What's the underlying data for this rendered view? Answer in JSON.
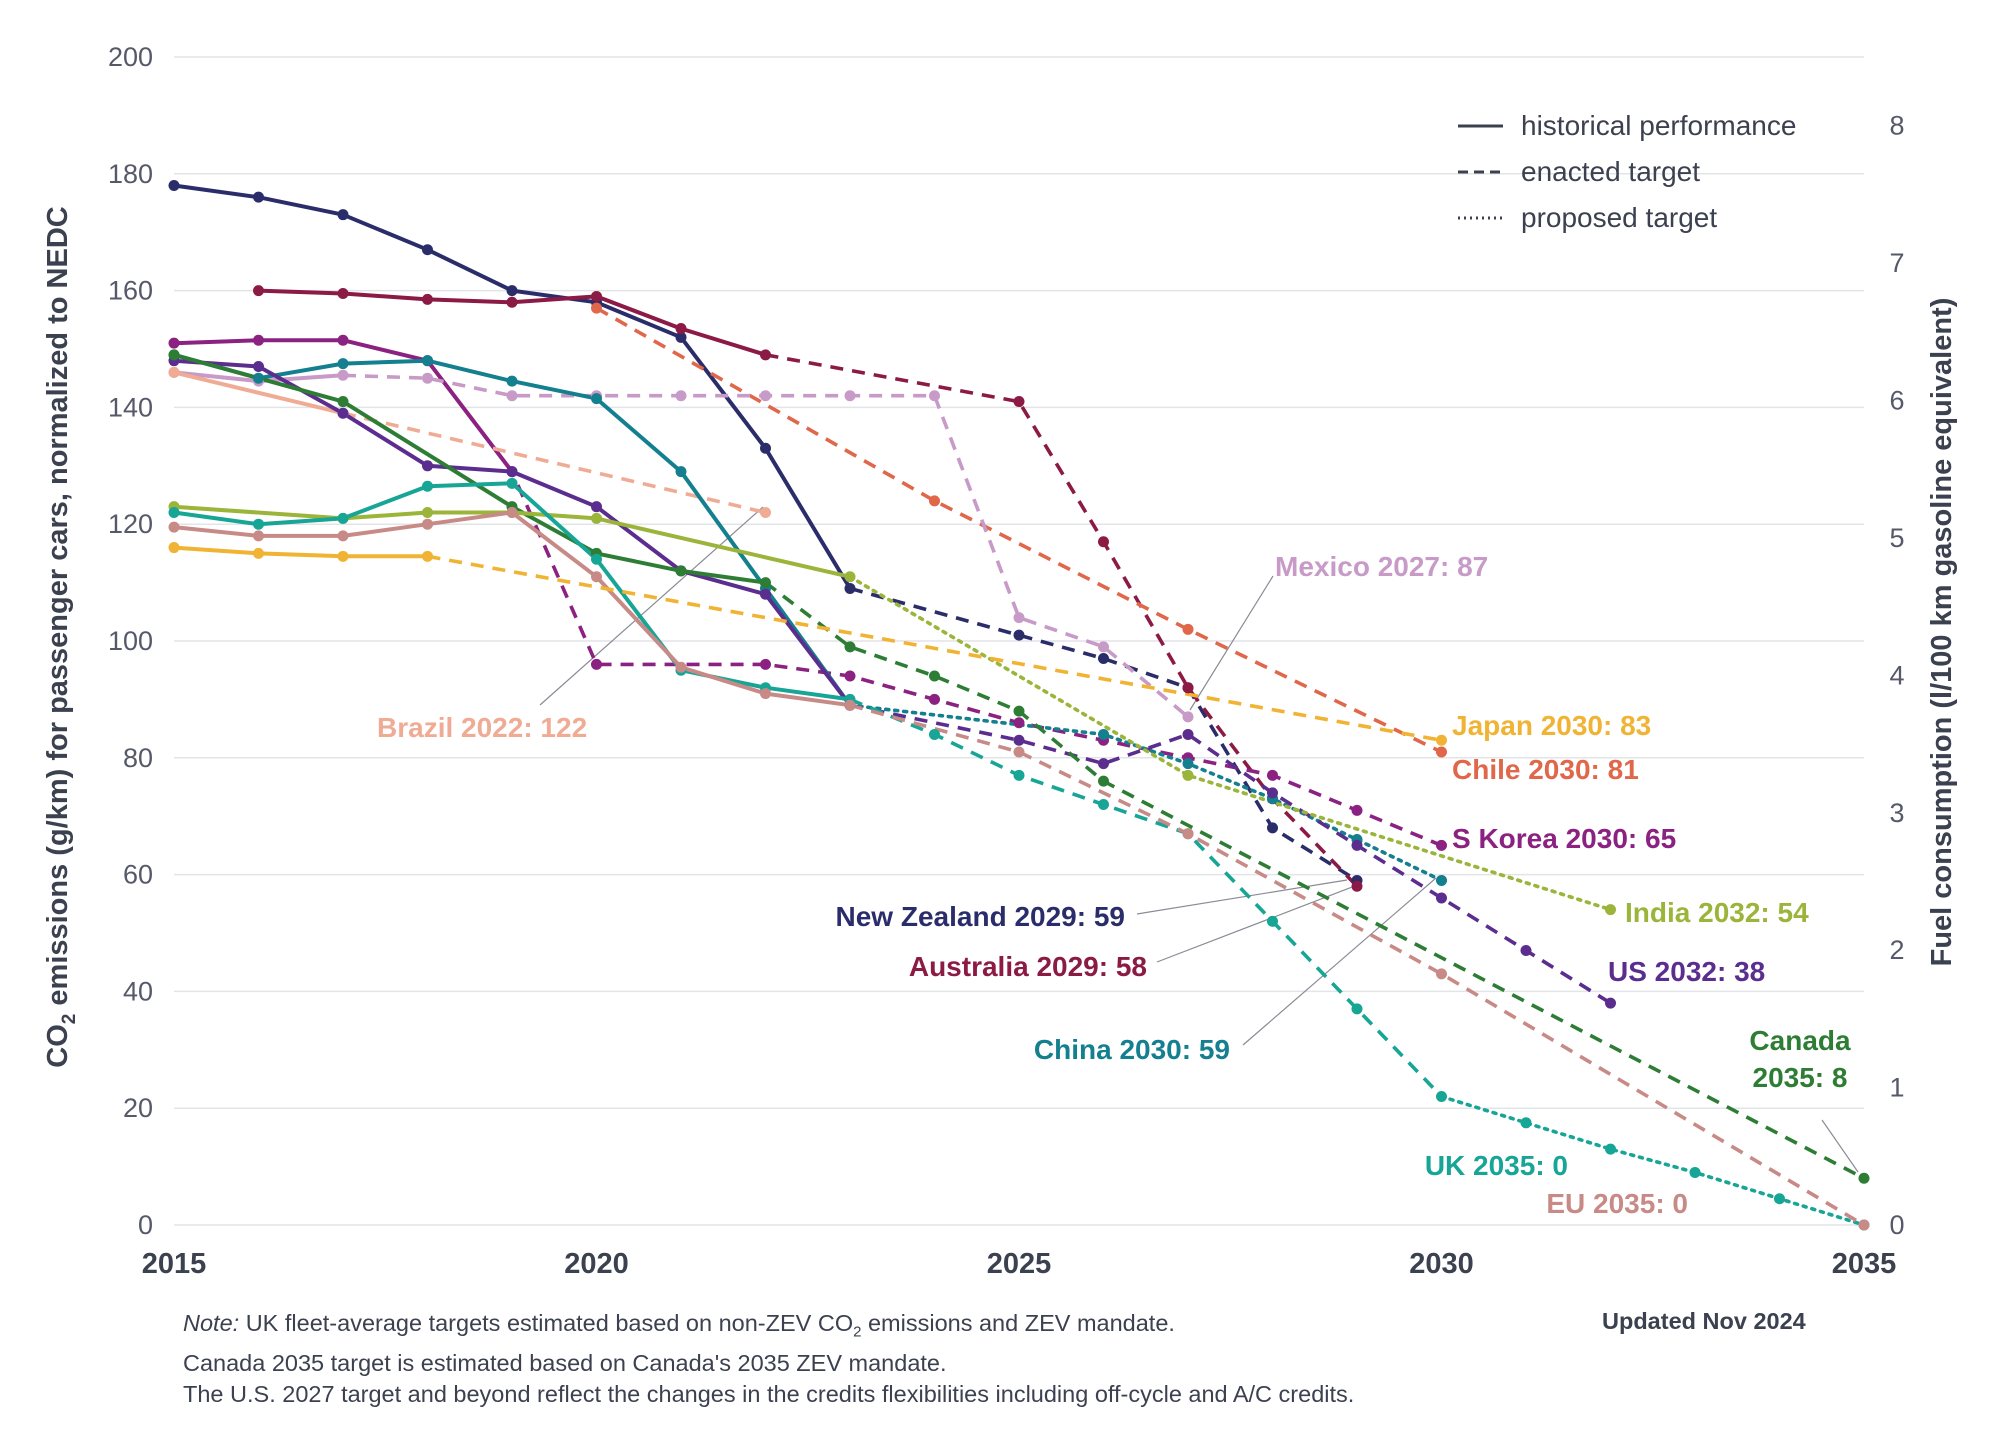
{
  "chart_data": {
    "type": "line",
    "y_axis_label_prefix": "CO",
    "y_axis_label_sub": "2",
    "y_axis_label_rest": " emissions (g/km) for passenger cars, normalized to NEDC",
    "y2_axis_label": "Fuel consumption (l/100 km gasoline equivalent)",
    "xlim": [
      2015,
      2035
    ],
    "ylim": [
      0,
      200
    ],
    "y2lim": [
      0,
      8.5
    ],
    "x_ticks": [
      "2015",
      "2020",
      "2025",
      "2030",
      "2035"
    ],
    "y_ticks": [
      "0",
      "20",
      "40",
      "60",
      "80",
      "100",
      "120",
      "140",
      "160",
      "180",
      "200"
    ],
    "y2_ticks": [
      "0",
      "1",
      "2",
      "3",
      "4",
      "5",
      "6",
      "7",
      "8"
    ],
    "legend": [
      {
        "label": "historical performance",
        "style": "solid"
      },
      {
        "label": "enacted target",
        "style": "dashed"
      },
      {
        "label": "proposed target",
        "style": "dotted"
      }
    ],
    "series": [
      {
        "name": "New Zealand",
        "color": "#2b2d6b",
        "historical": [
          [
            2015,
            178
          ],
          [
            2016,
            176
          ],
          [
            2017,
            173
          ],
          [
            2018,
            167
          ],
          [
            2019,
            160
          ],
          [
            2020,
            158
          ],
          [
            2021,
            152
          ],
          [
            2022,
            133
          ],
          [
            2023,
            109
          ]
        ],
        "enacted": [
          [
            2023,
            109
          ],
          [
            2025,
            101
          ],
          [
            2026,
            97
          ],
          [
            2027,
            92
          ],
          [
            2028,
            68
          ],
          [
            2029,
            59
          ]
        ]
      },
      {
        "name": "Australia",
        "color": "#8b1a45",
        "historical": [
          [
            2016,
            160
          ],
          [
            2017,
            159.5
          ],
          [
            2018,
            158.5
          ],
          [
            2019,
            158
          ],
          [
            2020,
            159
          ],
          [
            2021,
            153.5
          ],
          [
            2022,
            149
          ]
        ],
        "enacted": [
          [
            2022,
            149
          ],
          [
            2025,
            141
          ],
          [
            2026,
            117
          ],
          [
            2027,
            92
          ],
          [
            2028,
            73
          ],
          [
            2029,
            58
          ]
        ]
      },
      {
        "name": "Chile",
        "color": "#e0674a",
        "enacted": [
          [
            2020,
            157
          ],
          [
            2024,
            124
          ],
          [
            2027,
            102
          ],
          [
            2030,
            81
          ]
        ]
      },
      {
        "name": "S Korea",
        "color": "#8b2181",
        "historical": [
          [
            2015,
            151
          ],
          [
            2016,
            151.5
          ],
          [
            2017,
            151.5
          ],
          [
            2018,
            148
          ],
          [
            2019,
            129
          ]
        ],
        "enacted": [
          [
            2018,
            148
          ],
          [
            2019,
            129
          ],
          [
            2020,
            96
          ],
          [
            2022,
            96
          ],
          [
            2023,
            94
          ],
          [
            2024,
            90
          ],
          [
            2025,
            86
          ],
          [
            2026,
            83
          ],
          [
            2027,
            80
          ],
          [
            2028,
            77
          ],
          [
            2029,
            71
          ],
          [
            2030,
            65
          ]
        ]
      },
      {
        "name": "Mexico",
        "color": "#c79ac7",
        "historical": [
          [
            2015,
            146
          ],
          [
            2016,
            144.5
          ],
          [
            2017,
            145.5
          ]
        ],
        "enacted": [
          [
            2017,
            145.5
          ],
          [
            2018,
            145
          ],
          [
            2019,
            142
          ],
          [
            2020,
            142
          ],
          [
            2021,
            142
          ],
          [
            2022,
            142
          ],
          [
            2023,
            142
          ],
          [
            2024,
            142
          ],
          [
            2025,
            104
          ],
          [
            2026,
            99
          ],
          [
            2027,
            87
          ]
        ]
      },
      {
        "name": "Brazil",
        "color": "#f0ab95",
        "historical": [
          [
            2015,
            146
          ],
          [
            2017,
            139
          ]
        ],
        "enacted": [
          [
            2017,
            139
          ],
          [
            2022,
            122
          ]
        ]
      },
      {
        "name": "China",
        "color": "#137f8f",
        "historical": [
          [
            2015,
            149
          ],
          [
            2016,
            145
          ],
          [
            2017,
            147.5
          ],
          [
            2018,
            148
          ],
          [
            2019,
            144.5
          ],
          [
            2020,
            141.5
          ],
          [
            2021,
            129
          ],
          [
            2022,
            109
          ],
          [
            2023,
            89
          ]
        ],
        "proposed": [
          [
            2023,
            89
          ],
          [
            2026,
            84
          ],
          [
            2027,
            79
          ],
          [
            2028,
            73
          ],
          [
            2029,
            66
          ],
          [
            2030,
            59
          ]
        ]
      },
      {
        "name": "US",
        "color": "#5b2d8e",
        "historical": [
          [
            2015,
            148
          ],
          [
            2016,
            147
          ],
          [
            2017,
            139
          ],
          [
            2018,
            130
          ],
          [
            2019,
            129
          ],
          [
            2020,
            123
          ],
          [
            2021,
            112
          ],
          [
            2022,
            108
          ],
          [
            2023,
            89
          ]
        ],
        "enacted": [
          [
            2023,
            89
          ],
          [
            2025,
            83
          ],
          [
            2026,
            79
          ],
          [
            2027,
            84
          ],
          [
            2028,
            74
          ],
          [
            2029,
            65
          ],
          [
            2030,
            56
          ],
          [
            2031,
            47
          ],
          [
            2032,
            38
          ]
        ]
      },
      {
        "name": "Canada",
        "color": "#2e7d35",
        "historical": [
          [
            2015,
            149
          ],
          [
            2017,
            141
          ],
          [
            2019,
            123
          ],
          [
            2020,
            115
          ],
          [
            2021,
            112
          ],
          [
            2022,
            110
          ]
        ],
        "enacted": [
          [
            2022,
            110
          ],
          [
            2023,
            99
          ],
          [
            2024,
            94
          ],
          [
            2025,
            88
          ],
          [
            2026,
            76
          ],
          [
            2035,
            8
          ]
        ]
      },
      {
        "name": "India",
        "color": "#9bb43a",
        "historical": [
          [
            2015,
            123
          ],
          [
            2017,
            121
          ],
          [
            2018,
            122
          ],
          [
            2019,
            122
          ],
          [
            2020,
            121
          ],
          [
            2023,
            111
          ]
        ],
        "proposed": [
          [
            2023,
            111
          ],
          [
            2027,
            77
          ],
          [
            2032,
            54
          ]
        ]
      },
      {
        "name": "UK",
        "color": "#17a596",
        "historical": [
          [
            2015,
            122
          ],
          [
            2016,
            120
          ],
          [
            2017,
            121
          ],
          [
            2018,
            126.5
          ],
          [
            2019,
            127
          ],
          [
            2020,
            114
          ],
          [
            2021,
            95
          ],
          [
            2022,
            92
          ],
          [
            2023,
            90
          ]
        ],
        "enacted": [
          [
            2023,
            90
          ],
          [
            2024,
            84
          ],
          [
            2025,
            77
          ],
          [
            2026,
            72
          ],
          [
            2027,
            67
          ],
          [
            2028,
            52
          ],
          [
            2029,
            37
          ],
          [
            2030,
            22
          ]
        ],
        "proposed": [
          [
            2030,
            22
          ],
          [
            2031,
            17.5
          ],
          [
            2032,
            13
          ],
          [
            2033,
            9
          ],
          [
            2034,
            4.5
          ],
          [
            2035,
            0
          ]
        ]
      },
      {
        "name": "EU",
        "color": "#c88a86",
        "historical": [
          [
            2015,
            119.5
          ],
          [
            2016,
            118
          ],
          [
            2017,
            118
          ],
          [
            2018,
            120
          ],
          [
            2019,
            122
          ],
          [
            2020,
            111
          ],
          [
            2021,
            95.5
          ],
          [
            2022,
            91
          ],
          [
            2023,
            89
          ]
        ],
        "enacted": [
          [
            2023,
            89
          ],
          [
            2025,
            81
          ],
          [
            2027,
            67
          ],
          [
            2030,
            43
          ],
          [
            2035,
            0
          ]
        ]
      },
      {
        "name": "Japan",
        "color": "#f0b334",
        "historical": [
          [
            2015,
            116
          ],
          [
            2016,
            115
          ],
          [
            2017,
            114.5
          ],
          [
            2018,
            114.5
          ]
        ],
        "enacted": [
          [
            2018,
            114.5
          ],
          [
            2030,
            83
          ]
        ]
      }
    ],
    "annotations": [
      {
        "series": "Mexico",
        "text": "Mexico 2027: 87",
        "color": "#c79ac7"
      },
      {
        "series": "Brazil",
        "text": "Brazil 2022: 122",
        "color": "#f0ab95"
      },
      {
        "series": "Japan",
        "text": "Japan 2030: 83",
        "color": "#f0b334"
      },
      {
        "series": "Chile",
        "text": "Chile 2030: 81",
        "color": "#e0674a"
      },
      {
        "series": "S Korea",
        "text": "S Korea 2030: 65",
        "color": "#8b2181"
      },
      {
        "series": "New Zealand",
        "text": "New Zealand 2029: 59",
        "color": "#2b2d6b"
      },
      {
        "series": "India",
        "text": "India 2032: 54",
        "color": "#9bb43a"
      },
      {
        "series": "Australia",
        "text": "Australia 2029: 58",
        "color": "#8b1a45"
      },
      {
        "series": "US",
        "text": "US 2032: 38",
        "color": "#5b2d8e"
      },
      {
        "series": "China",
        "text": "China 2030: 59",
        "color": "#137f8f"
      },
      {
        "series": "Canada",
        "text": "Canada",
        "text2": "2035: 8",
        "color": "#2e7d35"
      },
      {
        "series": "UK",
        "text": "UK 2035: 0",
        "color": "#17a596"
      },
      {
        "series": "EU",
        "text": "EU 2035: 0",
        "color": "#c88a86"
      }
    ]
  },
  "footer": {
    "note_label": "Note:",
    "note_line1_before": " UK fleet-average targets estimated based on non-ZEV CO",
    "note_line1_sub": "2",
    "note_line1_after": " emissions and ZEV mandate.",
    "note_line2": "Canada 2035 target is estimated based on Canada's 2035 ZEV mandate.",
    "note_line3": "The U.S. 2027 target and beyond reflect the changes in the credits flexibilities including off-cycle and A/C credits.",
    "updated": "Updated Nov 2024"
  }
}
